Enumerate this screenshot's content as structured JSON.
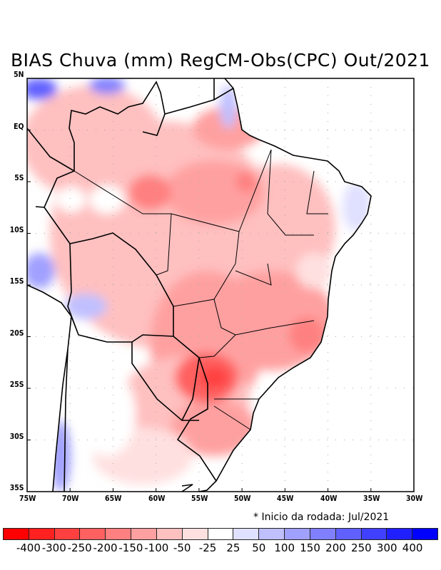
{
  "title": "BIAS Chuva (mm) RegCM-Obs(CPC) Out/2021",
  "note": "* Inicio da rodada: Jul/2021",
  "lat_labels": [
    "5N",
    "EQ",
    "5S",
    "10S",
    "15S",
    "20S",
    "25S",
    "30S",
    "35S"
  ],
  "lon_labels": [
    "75W",
    "70W",
    "65W",
    "60W",
    "55W",
    "50W",
    "45W",
    "40W",
    "35W",
    "30W"
  ],
  "colorbar": {
    "labels": [
      "-400",
      "-300",
      "-250",
      "-200",
      "-150",
      "-100",
      "-50",
      "-25",
      "25",
      "50",
      "100",
      "150",
      "200",
      "250",
      "300",
      "400"
    ],
    "colors": [
      "#ff0000",
      "#ff2020",
      "#ff4040",
      "#ff6060",
      "#ff8080",
      "#ffa0a0",
      "#ffc0c0",
      "#ffe0e0",
      "#ffffff",
      "#e0e0ff",
      "#c0c0ff",
      "#a0a0ff",
      "#8080ff",
      "#6060ff",
      "#4040ff",
      "#2020ff",
      "#0000ff"
    ]
  }
}
